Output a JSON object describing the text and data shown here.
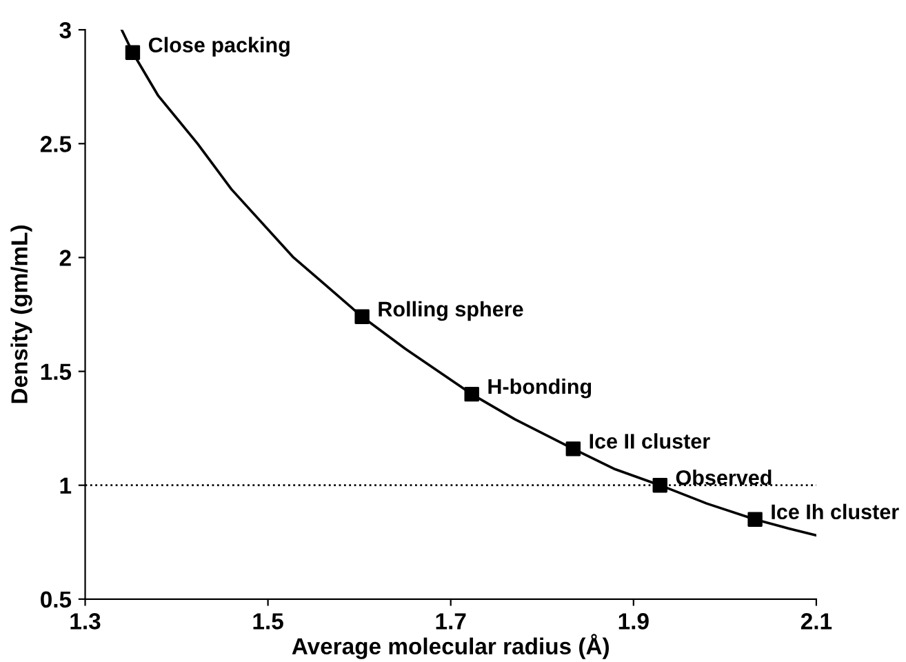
{
  "chart_data": {
    "type": "scatter",
    "xlabel": "Average molecular radius (Å)",
    "ylabel": "Density (gm/mL)",
    "xlim": [
      1.3,
      2.1
    ],
    "ylim": [
      0.5,
      3
    ],
    "xticks": [
      1.3,
      1.5,
      1.7,
      1.9,
      2.1
    ],
    "yticks": [
      0.5,
      1,
      1.5,
      2,
      2.5,
      3
    ],
    "grid": false,
    "legend": false,
    "series": [
      {
        "type": "line",
        "color": "#000000",
        "marker": "none",
        "line_style": "solid",
        "x": [
          1.34,
          1.352,
          1.38,
          1.423,
          1.46,
          1.528,
          1.56,
          1.603,
          1.65,
          1.723,
          1.77,
          1.834,
          1.88,
          1.929,
          1.98,
          2.033,
          2.07,
          2.1
        ],
        "values": [
          3.0,
          2.9,
          2.71,
          2.5,
          2.3,
          2.0,
          1.89,
          1.74,
          1.6,
          1.4,
          1.29,
          1.16,
          1.07,
          1.0,
          0.92,
          0.85,
          0.81,
          0.78
        ]
      },
      {
        "color": "#000000",
        "marker": "square",
        "x": [
          1.352,
          1.603,
          1.723,
          1.834,
          1.929,
          2.033
        ],
        "values": [
          2.9,
          1.74,
          1.4,
          1.16,
          1.0,
          0.85
        ]
      }
    ],
    "ref_lines": [
      {
        "axis": "y",
        "value": 1,
        "color": "#000000",
        "line_style": "dotted"
      }
    ],
    "annotations": [
      {
        "text": "Close packing",
        "x": 1.352,
        "y": 2.9
      },
      {
        "text": "Rolling sphere",
        "x": 1.603,
        "y": 1.74
      },
      {
        "text": "H-bonding",
        "x": 1.723,
        "y": 1.4
      },
      {
        "text": "Ice II cluster",
        "x": 1.834,
        "y": 1.16
      },
      {
        "text": "Observed",
        "x": 1.929,
        "y": 1.0
      },
      {
        "text": "Ice Ih cluster",
        "x": 2.033,
        "y": 0.85
      }
    ]
  }
}
